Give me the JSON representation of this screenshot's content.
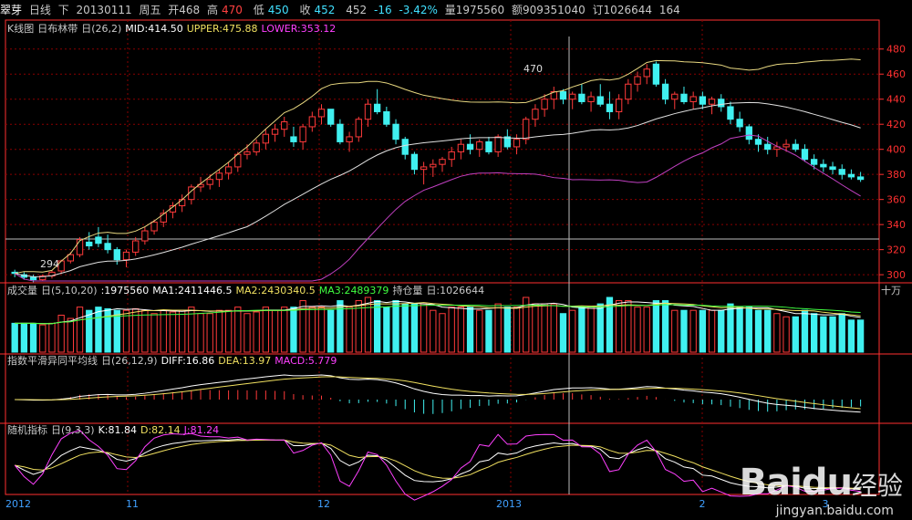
{
  "header": {
    "name": "翠芽",
    "period": "日线",
    "dir": "下",
    "date": "20130111",
    "weekday": "周五",
    "open_label": "开468",
    "high_label": "高",
    "high_val": "470",
    "low_label": "低",
    "low_val": "450",
    "close_label": "收",
    "close_val": "452",
    "close_extra": "452",
    "change": "-16",
    "change_pct": "-3.42%",
    "volume": "量1975560",
    "amount": "额909351040",
    "order": "订1026644",
    "extra": "164"
  },
  "panels": {
    "kline": {
      "l1": "K线图",
      "l2": "日布林带",
      "l3": "日(26,2)",
      "mid": "MID:414.50",
      "upper": "UPPER:475.88",
      "lower": "LOWER:353.12"
    },
    "volume": {
      "l1": "成交量",
      "l2": "日(5,10,20)",
      "l3": ":1975560",
      "ma1": "MA1:2411446.5",
      "ma2": "MA2:2430340.5",
      "ma3": "MA3:2489379",
      "l4": "持仓量",
      "l5": "日:1026644",
      "unit": "十万"
    },
    "macd": {
      "l1": "指数平滑异同平均线",
      "l2": "日(26,12,9)",
      "diff": "DIFF:16.86",
      "dea": "DEA:13.97",
      "macd": "MACD:5.779"
    },
    "kdj": {
      "l1": "随机指标",
      "l2": "日(9,3,3)",
      "k": "K:81.84",
      "d": "D:82.14",
      "j": "J:81.24"
    }
  },
  "watermark": {
    "logo": "Baidu",
    "cn": "经验",
    "url": "jingyan.baidu.com"
  },
  "colors": {
    "up": "#ff3a3a",
    "down": "#40f0f0",
    "mid": "#e0e0e0",
    "upper": "#e8d880",
    "lower": "#c040c0",
    "grid": "#8a0000",
    "axis": "#ff3030"
  },
  "chart_data": {
    "type": "candlestick",
    "y_ticks": [
      300,
      320,
      340,
      360,
      380,
      400,
      420,
      440,
      460,
      480
    ],
    "ylim": [
      295,
      490
    ],
    "annotations": [
      "470",
      "294"
    ],
    "x_labels": [
      "2012",
      "11",
      "12",
      "2013",
      "2",
      "3"
    ],
    "candles": [
      [
        302,
        304,
        298,
        301
      ],
      [
        300,
        302,
        296,
        298
      ],
      [
        298,
        300,
        294,
        296
      ],
      [
        296,
        300,
        295,
        299
      ],
      [
        299,
        303,
        297,
        302
      ],
      [
        303,
        312,
        301,
        311
      ],
      [
        311,
        318,
        309,
        316
      ],
      [
        316,
        330,
        314,
        328
      ],
      [
        326,
        334,
        320,
        323
      ],
      [
        330,
        338,
        322,
        325
      ],
      [
        325,
        332,
        317,
        320
      ],
      [
        320,
        322,
        308,
        312
      ],
      [
        312,
        320,
        306,
        318
      ],
      [
        318,
        330,
        315,
        327
      ],
      [
        327,
        338,
        324,
        335
      ],
      [
        335,
        344,
        332,
        342
      ],
      [
        342,
        352,
        338,
        349
      ],
      [
        350,
        358,
        345,
        355
      ],
      [
        355,
        364,
        350,
        360
      ],
      [
        360,
        372,
        356,
        370
      ],
      [
        370,
        378,
        366,
        372
      ],
      [
        372,
        380,
        368,
        376
      ],
      [
        376,
        384,
        370,
        381
      ],
      [
        381,
        390,
        376,
        386
      ],
      [
        386,
        398,
        382,
        396
      ],
      [
        396,
        404,
        392,
        398
      ],
      [
        398,
        408,
        395,
        405
      ],
      [
        405,
        416,
        400,
        412
      ],
      [
        412,
        420,
        406,
        416
      ],
      [
        416,
        426,
        410,
        422
      ],
      [
        410,
        418,
        402,
        406
      ],
      [
        406,
        420,
        400,
        418
      ],
      [
        418,
        430,
        414,
        426
      ],
      [
        426,
        436,
        420,
        432
      ],
      [
        432,
        432,
        418,
        420
      ],
      [
        420,
        424,
        404,
        406
      ],
      [
        406,
        414,
        398,
        410
      ],
      [
        410,
        426,
        406,
        424
      ],
      [
        424,
        440,
        418,
        436
      ],
      [
        436,
        448,
        428,
        430
      ],
      [
        430,
        434,
        418,
        420
      ],
      [
        420,
        424,
        404,
        408
      ],
      [
        408,
        410,
        392,
        396
      ],
      [
        396,
        398,
        380,
        384
      ],
      [
        384,
        390,
        372,
        386
      ],
      [
        386,
        392,
        378,
        388
      ],
      [
        388,
        394,
        382,
        392
      ],
      [
        392,
        402,
        386,
        398
      ],
      [
        398,
        408,
        392,
        404
      ],
      [
        404,
        412,
        396,
        400
      ],
      [
        400,
        408,
        394,
        406
      ],
      [
        406,
        410,
        396,
        398
      ],
      [
        398,
        412,
        394,
        410
      ],
      [
        410,
        416,
        400,
        402
      ],
      [
        402,
        412,
        396,
        408
      ],
      [
        408,
        426,
        404,
        424
      ],
      [
        424,
        436,
        418,
        432
      ],
      [
        432,
        444,
        426,
        440
      ],
      [
        440,
        450,
        432,
        446
      ],
      [
        446,
        448,
        436,
        440
      ],
      [
        440,
        446,
        432,
        444
      ],
      [
        444,
        452,
        436,
        438
      ],
      [
        438,
        446,
        430,
        442
      ],
      [
        442,
        452,
        434,
        436
      ],
      [
        436,
        446,
        424,
        430
      ],
      [
        430,
        444,
        424,
        440
      ],
      [
        440,
        456,
        436,
        452
      ],
      [
        452,
        462,
        446,
        458
      ],
      [
        458,
        468,
        452,
        464
      ],
      [
        468,
        470,
        450,
        452
      ],
      [
        452,
        456,
        436,
        440
      ],
      [
        440,
        446,
        432,
        444
      ],
      [
        444,
        450,
        436,
        438
      ],
      [
        438,
        446,
        432,
        442
      ],
      [
        442,
        446,
        432,
        436
      ],
      [
        436,
        442,
        428,
        440
      ],
      [
        440,
        444,
        430,
        434
      ],
      [
        434,
        438,
        420,
        424
      ],
      [
        424,
        430,
        414,
        418
      ],
      [
        418,
        420,
        404,
        408
      ],
      [
        408,
        412,
        398,
        404
      ],
      [
        404,
        410,
        396,
        400
      ],
      [
        400,
        406,
        394,
        402
      ],
      [
        402,
        408,
        398,
        404
      ],
      [
        404,
        408,
        398,
        400
      ],
      [
        400,
        404,
        390,
        392
      ],
      [
        392,
        396,
        384,
        388
      ],
      [
        388,
        392,
        382,
        386
      ],
      [
        386,
        390,
        380,
        384
      ],
      [
        384,
        388,
        376,
        380
      ],
      [
        380,
        384,
        376,
        378
      ],
      [
        378,
        382,
        374,
        376
      ]
    ]
  }
}
